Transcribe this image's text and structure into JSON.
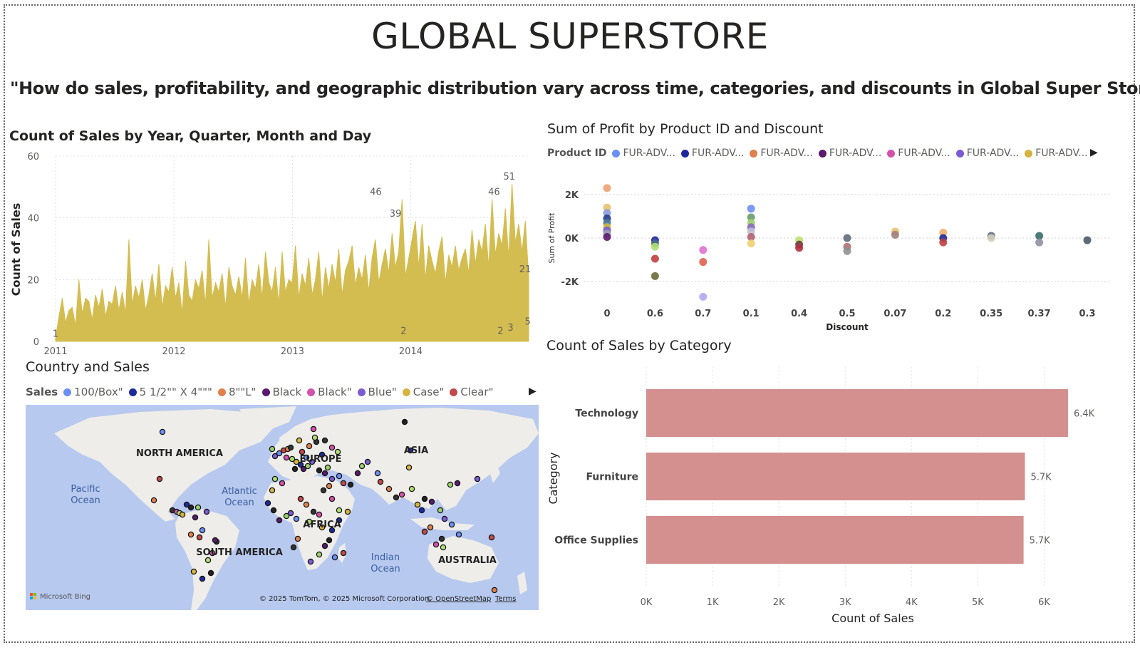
{
  "header": {
    "title": "GLOBAL SUPERSTORE",
    "question": "\"How do sales, profitability, and geographic distribution vary across time, categories, and discounts in Global Super Store?\""
  },
  "timeline_chart": {
    "title": "Count of Sales by Year, Quarter, Month and Day",
    "chart_data": {
      "type": "area",
      "title": "Count of Sales by Year, Quarter, Month and Day",
      "ylabel": "Count of Sales",
      "xlabel": "",
      "ylim": [
        0,
        60
      ],
      "yticks": [
        "0",
        "20",
        "40",
        "60"
      ],
      "xticks": [
        "2011",
        "2012",
        "2013",
        "2014"
      ],
      "x_range": [
        "2011-01-01",
        "2014-12-31"
      ],
      "color": "#d4bd50",
      "grid": true,
      "series": [
        {
          "values": [
            1,
            8,
            14,
            6,
            10,
            11,
            5,
            20,
            9,
            14,
            13,
            7,
            15,
            11,
            17,
            8,
            13,
            12,
            18,
            10,
            16,
            9,
            33,
            12,
            18,
            14,
            20,
            10,
            15,
            22,
            13,
            25,
            11,
            18,
            16,
            24,
            14,
            19,
            9,
            26,
            15,
            13,
            20,
            17,
            23,
            12,
            33,
            14,
            19,
            16,
            22,
            11,
            24,
            18,
            15,
            21,
            14,
            27,
            12,
            20,
            17,
            25,
            14,
            29,
            19,
            16,
            24,
            12,
            29,
            16,
            20,
            19,
            31,
            14,
            22,
            18,
            27,
            15,
            20,
            29,
            13,
            24,
            17,
            25,
            19,
            30,
            15,
            23,
            26,
            31,
            18,
            24,
            20,
            28,
            16,
            27,
            33,
            19,
            25,
            30,
            22,
            35,
            24,
            29,
            46,
            21,
            27,
            33,
            39,
            24,
            38,
            20,
            31,
            26,
            22,
            29,
            34,
            19,
            28,
            24,
            31,
            23,
            27,
            30,
            22,
            36,
            25,
            33,
            29,
            38,
            24,
            46,
            28,
            35,
            31,
            43,
            27,
            51,
            32,
            38,
            29,
            39,
            21
          ]
        }
      ],
      "data_labels": [
        {
          "x": "2011-01-01",
          "value": 1,
          "text": "1"
        },
        {
          "x": "2013-09-15",
          "value": 46,
          "text": "46"
        },
        {
          "x": "2013-11-15",
          "value": 39,
          "text": "39"
        },
        {
          "x": "2013-12-10",
          "value": 2,
          "text": "2"
        },
        {
          "x": "2014-09-15",
          "value": 46,
          "text": "46"
        },
        {
          "x": "2014-10-05",
          "value": 2,
          "text": "2"
        },
        {
          "x": "2014-11-01",
          "value": 51,
          "text": "51"
        },
        {
          "x": "2014-11-05",
          "value": 3,
          "text": "3"
        },
        {
          "x": "2014-12-20",
          "value": 21,
          "text": "21"
        },
        {
          "x": "2014-12-28",
          "value": 5,
          "text": "5"
        }
      ]
    }
  },
  "scatter_chart": {
    "title": "Sum of Profit by Product ID and Discount",
    "legend": {
      "label": "Product ID",
      "items": [
        {
          "label": "FUR-ADV...",
          "color": "#6b8ff5"
        },
        {
          "label": "FUR-ADV...",
          "color": "#1f2a9a"
        },
        {
          "label": "FUR-ADV...",
          "color": "#e0804d"
        },
        {
          "label": "FUR-ADV...",
          "color": "#5a1a6e"
        },
        {
          "label": "FUR-ADV...",
          "color": "#d452ab"
        },
        {
          "label": "FUR-ADV...",
          "color": "#7a5bd2"
        },
        {
          "label": "FUR-ADV...",
          "color": "#d4b43e"
        }
      ]
    },
    "chart_data": {
      "type": "scatter",
      "title": "Sum of Profit by Product ID and Discount",
      "xlabel": "Discount",
      "ylabel": "Sum of Profit",
      "categories": [
        "0",
        "0.6",
        "0.7",
        "0.1",
        "0.4",
        "0.5",
        "0.07",
        "0.2",
        "0.35",
        "0.37",
        "0.3"
      ],
      "yticks": [
        "-2K",
        "0K",
        "2K"
      ],
      "ylim": [
        -3000,
        2700
      ],
      "grid": true,
      "points": [
        {
          "x": "0",
          "y": 2300,
          "color": "#f0a070"
        },
        {
          "x": "0",
          "y": 1400,
          "color": "#e8c070"
        },
        {
          "x": "0",
          "y": 1150,
          "color": "#8a9ee0"
        },
        {
          "x": "0",
          "y": 900,
          "color": "#2a3a8a"
        },
        {
          "x": "0",
          "y": 700,
          "color": "#4a7a9a"
        },
        {
          "x": "0",
          "y": 500,
          "color": "#d4b43e"
        },
        {
          "x": "0",
          "y": 350,
          "color": "#7a5bd2"
        },
        {
          "x": "0",
          "y": 200,
          "color": "#9aa0b0"
        },
        {
          "x": "0",
          "y": 50,
          "color": "#5a1a6e"
        },
        {
          "x": "0.6",
          "y": -100,
          "color": "#1f2a9a"
        },
        {
          "x": "0.6",
          "y": -250,
          "color": "#4a6a8a"
        },
        {
          "x": "0.6",
          "y": -400,
          "color": "#b0e070"
        },
        {
          "x": "0.6",
          "y": -950,
          "color": "#c04040"
        },
        {
          "x": "0.6",
          "y": -1750,
          "color": "#6a6a3a"
        },
        {
          "x": "0.7",
          "y": -550,
          "color": "#e070d0"
        },
        {
          "x": "0.7",
          "y": -1100,
          "color": "#e06050"
        },
        {
          "x": "0.7",
          "y": -2700,
          "color": "#b0a8f0"
        },
        {
          "x": "0.1",
          "y": 1350,
          "color": "#6b8ff5"
        },
        {
          "x": "0.1",
          "y": 950,
          "color": "#6a9a6a"
        },
        {
          "x": "0.1",
          "y": 700,
          "color": "#a0d070"
        },
        {
          "x": "0.1",
          "y": 500,
          "color": "#8a6abf"
        },
        {
          "x": "0.1",
          "y": 300,
          "color": "#c0c0d0"
        },
        {
          "x": "0.1",
          "y": 50,
          "color": "#b06070"
        },
        {
          "x": "0.1",
          "y": -250,
          "color": "#f0d070"
        },
        {
          "x": "0.4",
          "y": -100,
          "color": "#c0e070"
        },
        {
          "x": "0.4",
          "y": -300,
          "color": "#6a4040"
        },
        {
          "x": "0.4",
          "y": -450,
          "color": "#b03040"
        },
        {
          "x": "0.5",
          "y": 0,
          "color": "#606a7a"
        },
        {
          "x": "0.5",
          "y": -400,
          "color": "#b07070"
        },
        {
          "x": "0.5",
          "y": -600,
          "color": "#909090"
        },
        {
          "x": "0.07",
          "y": 300,
          "color": "#e8c070"
        },
        {
          "x": "0.07",
          "y": 150,
          "color": "#a08080"
        },
        {
          "x": "0.2",
          "y": 250,
          "color": "#f0b070"
        },
        {
          "x": "0.2",
          "y": 0,
          "color": "#1f2a9a"
        },
        {
          "x": "0.2",
          "y": -200,
          "color": "#c04040"
        },
        {
          "x": "0.35",
          "y": 100,
          "color": "#606a7a"
        },
        {
          "x": "0.35",
          "y": 0,
          "color": "#d0d0c0"
        },
        {
          "x": "0.37",
          "y": 100,
          "color": "#3a6a6a"
        },
        {
          "x": "0.37",
          "y": -200,
          "color": "#9090a0"
        },
        {
          "x": "0.3",
          "y": -100,
          "color": "#4a5a6a"
        }
      ]
    }
  },
  "map_visual": {
    "title": "Country and Sales",
    "legend": {
      "label": "Sales",
      "items": [
        {
          "label": "100/Box\"",
          "color": "#6b8ff5"
        },
        {
          "label": "5 1/2\"\" X 4\"\"\"",
          "color": "#1f2a9a"
        },
        {
          "label": "8\"\"L\"",
          "color": "#e0804d"
        },
        {
          "label": "Black",
          "color": "#5a1a6e"
        },
        {
          "label": "Black\"",
          "color": "#d452ab"
        },
        {
          "label": "Blue\"",
          "color": "#7a5bd2"
        },
        {
          "label": "Case\"",
          "color": "#d4b43e"
        },
        {
          "label": "Clear\"",
          "color": "#c04a4a"
        }
      ]
    },
    "labels": {
      "north_america": "NORTH AMERICA",
      "europe": "EUROPE",
      "asia": "ASIA",
      "africa": "AFRICA",
      "south_america": "SOUTH AMERICA",
      "australia": "AUSTRALIA",
      "pacific": "Pacific\nOcean",
      "atlantic": "Atlantic\nOcean",
      "indian": "Indian\nOcean"
    },
    "attribution": "© 2025 TomTom, © 2025 Microsoft Corporation,",
    "osm_link": "© OpenStreetMap",
    "terms_link": "Terms",
    "bing_logo": "Microsoft Bing"
  },
  "bar_chart": {
    "title": "Count of Sales by Category",
    "chart_data": {
      "type": "bar",
      "orientation": "horizontal",
      "title": "Count of Sales by Category",
      "categories": [
        "Technology",
        "Furniture",
        "Office Supplies"
      ],
      "values": [
        6360,
        5710,
        5690
      ],
      "data_labels": [
        "6.4K",
        "5.7K",
        "5.7K"
      ],
      "xlabel": "Count of Sales",
      "ylabel": "Category",
      "xlim": [
        0,
        6500
      ],
      "xticks": [
        "0K",
        "1K",
        "2K",
        "3K",
        "4K",
        "5K",
        "6K"
      ],
      "color": "#d4908f",
      "grid": true
    }
  }
}
